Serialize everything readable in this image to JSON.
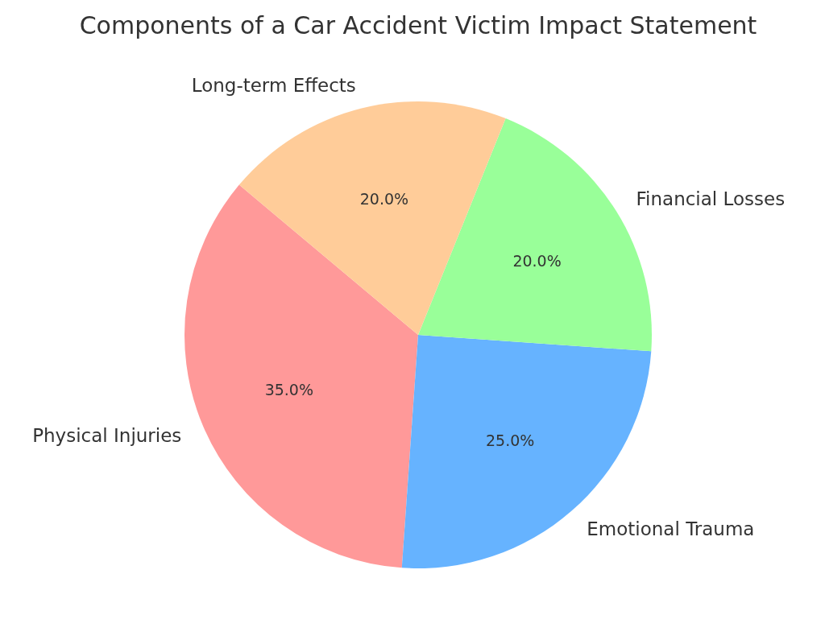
{
  "chart_data": {
    "type": "pie",
    "title": "Components of a Car Accident Victim Impact Statement",
    "categories": [
      "Physical Injuries",
      "Emotional Trauma",
      "Financial Losses",
      "Long-term Effects"
    ],
    "values": [
      35,
      25,
      20,
      20
    ],
    "colors": [
      "#ff9999",
      "#66b3ff",
      "#99ff99",
      "#ffcc99"
    ],
    "value_labels": [
      "35.0%",
      "25.0%",
      "20.0%",
      "20.0%"
    ]
  }
}
